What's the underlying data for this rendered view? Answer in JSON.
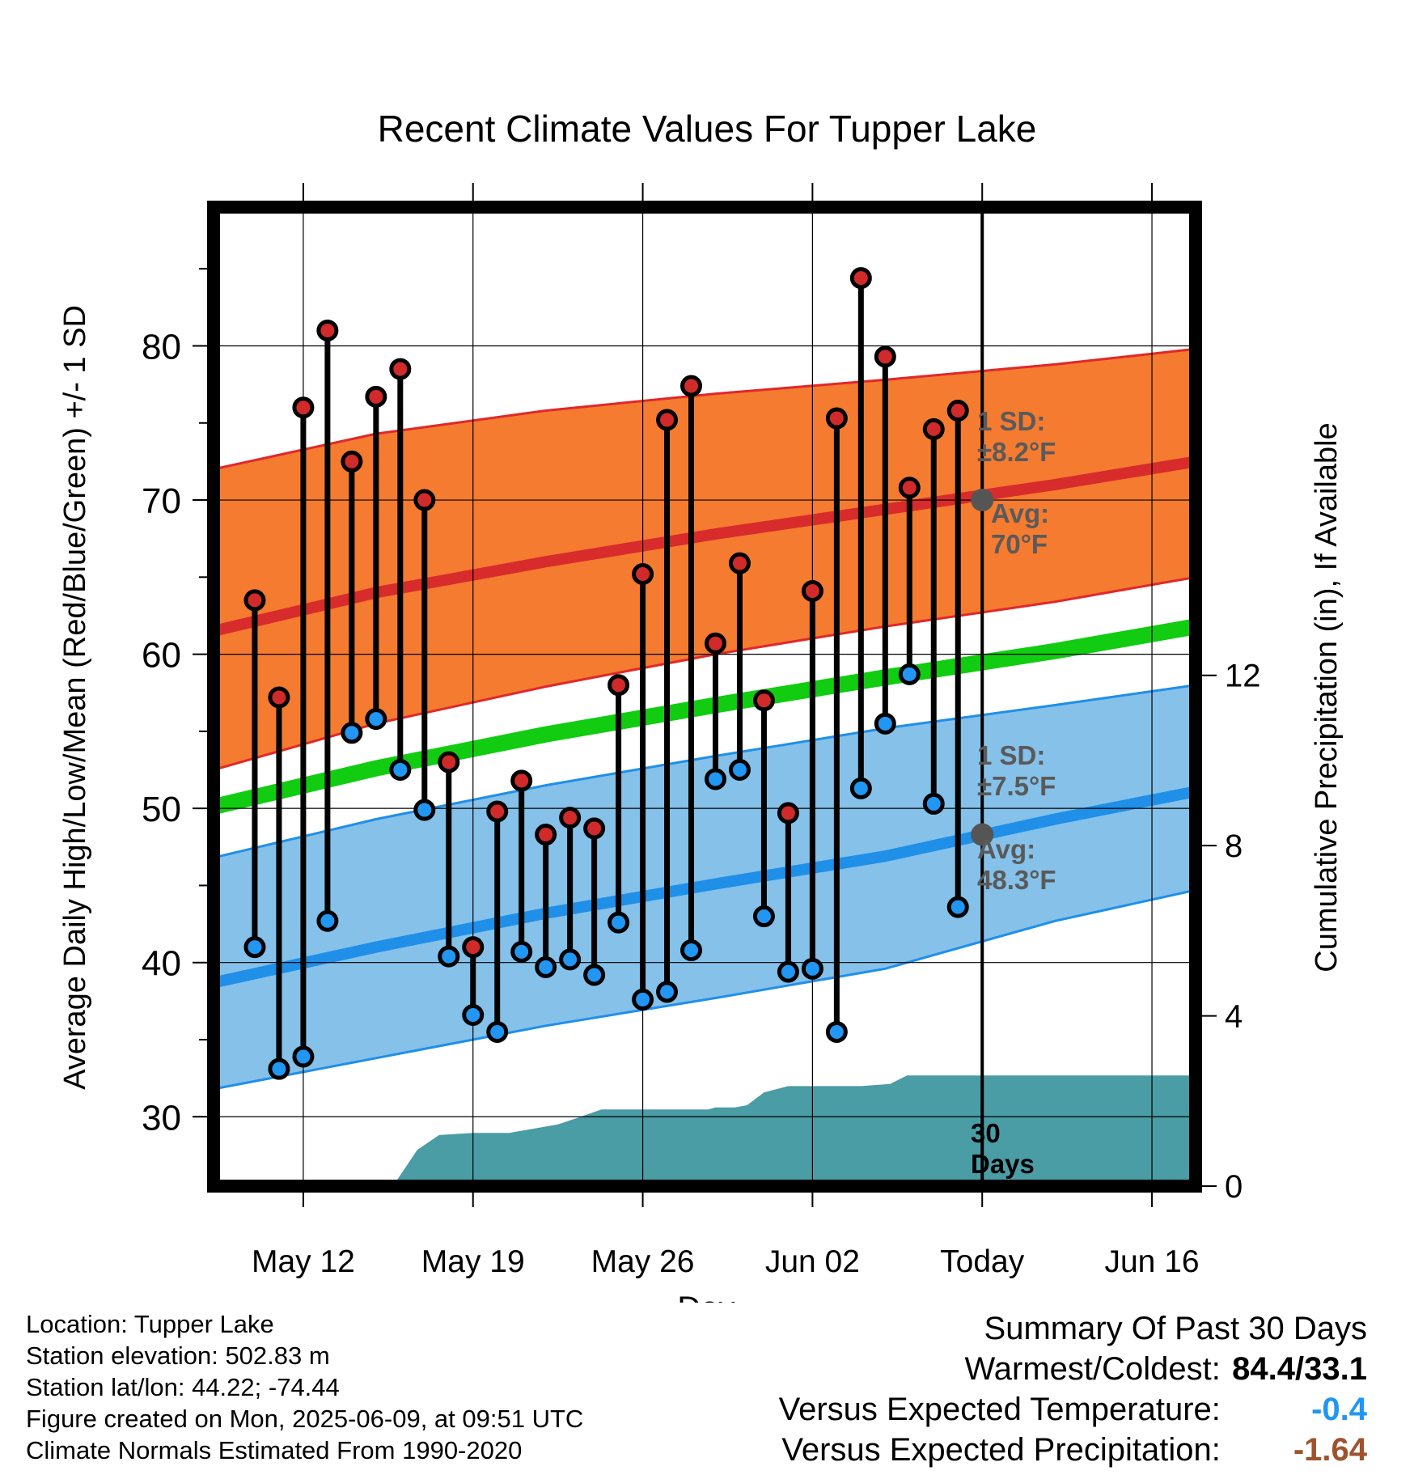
{
  "chart_data": {
    "type": "line",
    "title": "Recent Climate Values For Tupper Lake",
    "xlabel": "Day",
    "ylabel": "Average Daily High/Low/Mean (Red/Blue/Green) +/- 1 SD",
    "y2label": "Cumulative Precipitation (in), If Available",
    "x_ticks": [
      "May 12",
      "May 19",
      "May 26",
      "Jun 02",
      "Today",
      "Jun 16"
    ],
    "x_tick_days": [
      12,
      19,
      26,
      33,
      40,
      47
    ],
    "xlim": [
      8.3,
      48.8
    ],
    "ylim": [
      25.5,
      89
    ],
    "y_ticks": [
      30,
      40,
      50,
      60,
      70,
      80
    ],
    "y2lim": [
      0,
      23
    ],
    "y2_ticks": [
      0,
      4,
      8,
      12
    ],
    "grid": true,
    "today_day": 40,
    "colors": {
      "high_band": "#f47b30",
      "high_edge": "#e0282a",
      "high_mean": "#d82b2b",
      "low_band": "#85c1e9",
      "low_edge": "#1f8fe8",
      "low_mean": "#1f8fe8",
      "mean_line": "#11cc11",
      "precip": "#4a9ca5",
      "high_marker": "#d12a2a",
      "low_marker": "#2196f3",
      "today_marker": "#555555",
      "annotation": "#5a5a5a"
    },
    "normals": {
      "days": [
        8.3,
        15,
        22,
        29,
        36,
        43,
        48.8
      ],
      "high_mean": [
        61.5,
        64.0,
        66.0,
        67.8,
        69.4,
        71.0,
        72.5
      ],
      "high_plus_sd": [
        72.0,
        74.3,
        75.8,
        76.9,
        77.8,
        78.8,
        79.8
      ],
      "high_minus_sd": [
        52.5,
        55.5,
        57.9,
        60.0,
        61.8,
        63.4,
        65.0
      ],
      "low_mean": [
        38.7,
        41.0,
        43.2,
        45.1,
        46.9,
        49.3,
        51.1
      ],
      "low_plus_sd": [
        46.8,
        49.3,
        51.5,
        53.4,
        55.2,
        56.7,
        58.0
      ],
      "low_minus_sd": [
        31.8,
        33.8,
        35.9,
        37.7,
        39.6,
        42.7,
        44.7
      ],
      "mean": [
        50.1,
        52.6,
        54.8,
        56.7,
        58.5,
        60.2,
        61.8
      ]
    },
    "series": [
      {
        "name": "High",
        "x": [
          10,
          11,
          12,
          13,
          14,
          15,
          16,
          17,
          18,
          19,
          20,
          21,
          22,
          23,
          24,
          25,
          26,
          27,
          28,
          29,
          30,
          31,
          32,
          33,
          34,
          35,
          36,
          37,
          38,
          39
        ],
        "values": [
          63.5,
          57.2,
          76.0,
          81.0,
          72.5,
          76.7,
          78.5,
          70.0,
          53.0,
          41.0,
          49.8,
          51.8,
          48.3,
          49.4,
          48.7,
          58.0,
          65.2,
          75.2,
          77.4,
          60.7,
          65.9,
          57.0,
          49.7,
          64.1,
          75.3,
          84.4,
          79.3,
          70.8,
          74.6,
          75.8
        ]
      },
      {
        "name": "Low",
        "x": [
          10,
          11,
          12,
          13,
          14,
          15,
          16,
          17,
          18,
          19,
          20,
          21,
          22,
          23,
          24,
          25,
          26,
          27,
          28,
          29,
          30,
          31,
          32,
          33,
          34,
          35,
          36,
          37,
          38,
          39
        ],
        "values": [
          41.0,
          33.1,
          33.9,
          42.7,
          54.9,
          55.8,
          52.5,
          49.9,
          40.4,
          36.6,
          35.5,
          40.7,
          39.7,
          40.2,
          39.2,
          42.6,
          37.6,
          38.1,
          40.8,
          51.9,
          52.5,
          43.0,
          39.4,
          39.6,
          35.5,
          51.3,
          55.5,
          58.7,
          50.3,
          43.6
        ]
      }
    ],
    "precip": {
      "x": [
        8.3,
        15.7,
        16.7,
        17.6,
        19.0,
        20.5,
        21.5,
        22.5,
        23.3,
        24.3,
        28.7,
        29.0,
        29.8,
        30.3,
        31.0,
        32.0,
        33.0,
        35.0,
        36.2,
        36.9,
        40.0,
        48.8
      ],
      "values": [
        0,
        0,
        0.85,
        1.2,
        1.25,
        1.25,
        1.35,
        1.45,
        1.6,
        1.8,
        1.8,
        1.85,
        1.85,
        1.9,
        2.2,
        2.35,
        2.35,
        2.35,
        2.4,
        2.6,
        2.6,
        2.6
      ]
    },
    "annotations": {
      "high_sd": [
        "1 SD:",
        "±8.2°F"
      ],
      "high_avg": [
        "Avg:",
        "70°F"
      ],
      "low_sd": [
        "1 SD:",
        "±7.5°F"
      ],
      "low_avg": [
        "Avg:",
        "48.3°F"
      ],
      "days": [
        "30",
        "Days"
      ],
      "high_avg_value": 70.0,
      "low_avg_value": 48.3
    }
  },
  "footer": {
    "location": "Location: Tupper Lake",
    "elevation": "Station elevation: 502.83 m",
    "latlon": "Station lat/lon: 44.22; -74.44",
    "created": "Figure created on Mon, 2025-06-09, at 09:51 UTC",
    "normals": "Climate Normals Estimated From 1990-2020"
  },
  "summary": {
    "title": "Summary Of Past 30 Days",
    "warmest_label": "Warmest/Coldest:",
    "warmest_value": "84.4/33.1",
    "temp_label": "Versus Expected Temperature:",
    "temp_value": "-0.4",
    "temp_color": "#2196f3",
    "precip_label": "Versus Expected Precipitation:",
    "precip_value": "-1.64",
    "precip_color": "#a0522d"
  }
}
